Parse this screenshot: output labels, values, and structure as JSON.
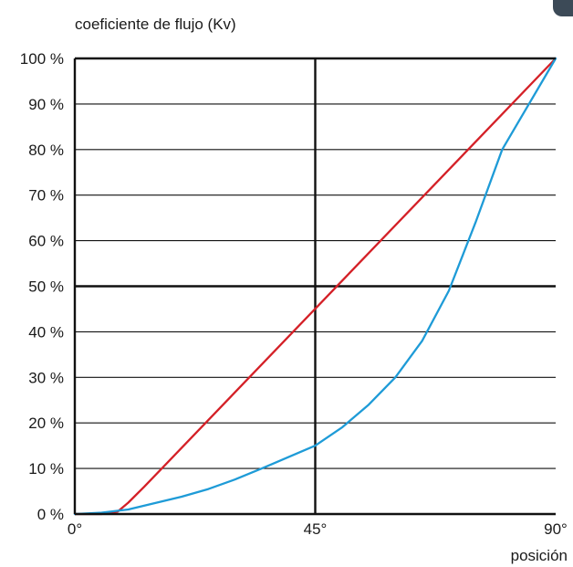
{
  "chart_data": {
    "type": "line",
    "title": "",
    "ylabel": "coeficiente de flujo (Kv)",
    "xlabel": "posición",
    "xlim": [
      0,
      90
    ],
    "ylim": [
      0,
      100
    ],
    "x_ticks": [
      {
        "value": 0,
        "label": "0°"
      },
      {
        "value": 45,
        "label": "45°"
      },
      {
        "value": 90,
        "label": "90°"
      }
    ],
    "y_ticks": [
      {
        "value": 0,
        "label": "0 %"
      },
      {
        "value": 10,
        "label": "10 %"
      },
      {
        "value": 20,
        "label": "20 %"
      },
      {
        "value": 30,
        "label": "30 %"
      },
      {
        "value": 40,
        "label": "40 %"
      },
      {
        "value": 50,
        "label": "50 %"
      },
      {
        "value": 60,
        "label": "60 %"
      },
      {
        "value": 70,
        "label": "70 %"
      },
      {
        "value": 80,
        "label": "80 %"
      },
      {
        "value": 90,
        "label": "90 %"
      },
      {
        "value": 100,
        "label": "100 %"
      }
    ],
    "bold_gridlines": {
      "x": [
        45
      ],
      "y": [
        50
      ]
    },
    "grid": true,
    "series": [
      {
        "color": "#d42027",
        "x": [
          0,
          5,
          8,
          10,
          13,
          90
        ],
        "y": [
          0,
          0,
          0.5,
          2.5,
          6,
          100
        ]
      },
      {
        "color": "#1e9bd7",
        "x": [
          0,
          5,
          10,
          15,
          20,
          25,
          30,
          35,
          40,
          45,
          50,
          55,
          60,
          65,
          70,
          75,
          80,
          85,
          88,
          90
        ],
        "y": [
          0,
          0.3,
          1,
          2.4,
          3.8,
          5.5,
          7.6,
          10,
          12.5,
          15,
          19,
          24,
          30,
          38,
          49,
          64,
          80,
          90,
          96,
          100
        ]
      }
    ]
  }
}
